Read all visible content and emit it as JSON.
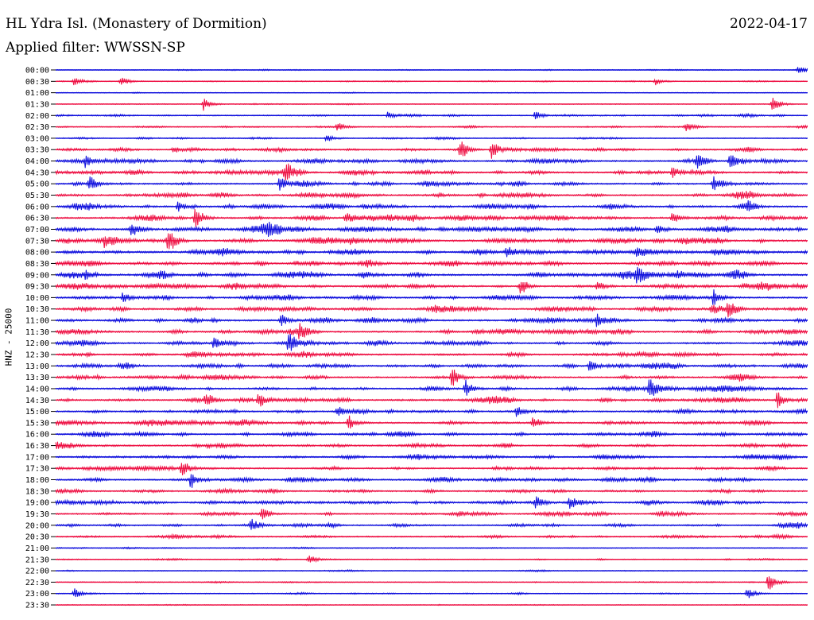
{
  "header": {
    "station": "HL Ydra Isl. (Monastery of Dormition)",
    "date": "2022-04-17",
    "filter": "Applied filter: WWSSN-SP"
  },
  "chart_data": {
    "type": "line",
    "title": "HL Ydra Isl. (Monastery of Dormition)",
    "subtitle": "Applied filter: WWSSN-SP",
    "ylabel": "HNZ - 25000",
    "series_colors": [
      "#1010dd",
      "#ee1144"
    ],
    "rows": [
      "00:00",
      "00:30",
      "01:00",
      "01:30",
      "02:00",
      "02:30",
      "03:00",
      "03:30",
      "04:00",
      "04:30",
      "05:00",
      "05:30",
      "06:00",
      "06:30",
      "07:00",
      "07:30",
      "08:00",
      "08:30",
      "09:00",
      "09:30",
      "10:00",
      "10:30",
      "11:00",
      "11:30",
      "12:00",
      "12:30",
      "13:00",
      "13:30",
      "14:00",
      "14:30",
      "15:00",
      "15:30",
      "16:00",
      "16:30",
      "17:00",
      "17:30",
      "18:00",
      "18:30",
      "19:00",
      "19:30",
      "20:00",
      "20:30",
      "21:00",
      "21:30",
      "22:00",
      "22:30",
      "23:00",
      "23:30"
    ],
    "activity": [
      0.15,
      0.15,
      0.1,
      0.12,
      0.3,
      0.25,
      0.25,
      0.45,
      0.55,
      0.55,
      0.55,
      0.6,
      0.65,
      0.7,
      0.75,
      0.75,
      0.75,
      0.7,
      0.75,
      0.7,
      0.6,
      0.65,
      0.65,
      0.65,
      0.6,
      0.6,
      0.6,
      0.55,
      0.6,
      0.6,
      0.55,
      0.6,
      0.6,
      0.55,
      0.55,
      0.55,
      0.55,
      0.5,
      0.55,
      0.5,
      0.45,
      0.4,
      0.2,
      0.2,
      0.15,
      0.15,
      0.2,
      0.1
    ],
    "events": [
      {
        "row": 0,
        "t": 0.988,
        "amp": 0.8
      },
      {
        "row": 1,
        "t": 0.025,
        "amp": 0.8
      },
      {
        "row": 1,
        "t": 0.087,
        "amp": 0.9
      },
      {
        "row": 1,
        "t": 0.798,
        "amp": 0.6
      },
      {
        "row": 3,
        "t": 0.197,
        "amp": 1.2
      },
      {
        "row": 3,
        "t": 0.953,
        "amp": 1.6
      },
      {
        "row": 4,
        "t": 0.442,
        "amp": 0.7
      },
      {
        "row": 4,
        "t": 0.638,
        "amp": 0.8
      },
      {
        "row": 5,
        "t": 0.375,
        "amp": 0.8
      },
      {
        "row": 5,
        "t": 0.838,
        "amp": 0.7
      },
      {
        "row": 6,
        "t": 0.36,
        "amp": 0.7
      },
      {
        "row": 7,
        "t": 0.538,
        "amp": 2.3
      },
      {
        "row": 7,
        "t": 0.58,
        "amp": 1.8
      },
      {
        "row": 7,
        "t": 0.157,
        "amp": 0.7
      },
      {
        "row": 8,
        "t": 0.04,
        "amp": 1.4
      },
      {
        "row": 8,
        "t": 0.897,
        "amp": 1.6
      },
      {
        "row": 8,
        "t": 0.853,
        "amp": 1.8
      },
      {
        "row": 9,
        "t": 0.305,
        "amp": 2.8
      },
      {
        "row": 9,
        "t": 0.82,
        "amp": 0.9
      },
      {
        "row": 10,
        "t": 0.045,
        "amp": 1.6
      },
      {
        "row": 10,
        "t": 0.298,
        "amp": 1.3
      },
      {
        "row": 10,
        "t": 0.875,
        "amp": 1.5
      },
      {
        "row": 12,
        "t": 0.163,
        "amp": 0.9
      },
      {
        "row": 12,
        "t": 0.92,
        "amp": 0.9
      },
      {
        "row": 13,
        "t": 0.186,
        "amp": 2.3
      },
      {
        "row": 13,
        "t": 0.386,
        "amp": 1.4
      },
      {
        "row": 13,
        "t": 0.82,
        "amp": 1.0
      },
      {
        "row": 14,
        "t": 0.1,
        "amp": 1.4
      },
      {
        "row": 14,
        "t": 0.8,
        "amp": 1.0
      },
      {
        "row": 15,
        "t": 0.15,
        "amp": 2.5
      },
      {
        "row": 15,
        "t": 0.065,
        "amp": 1.0
      },
      {
        "row": 16,
        "t": 0.6,
        "amp": 1.2
      },
      {
        "row": 16,
        "t": 0.772,
        "amp": 1.0
      },
      {
        "row": 18,
        "t": 0.04,
        "amp": 1.0
      },
      {
        "row": 18,
        "t": 0.772,
        "amp": 1.6
      },
      {
        "row": 19,
        "t": 0.618,
        "amp": 1.6
      },
      {
        "row": 19,
        "t": 0.72,
        "amp": 0.9
      },
      {
        "row": 20,
        "t": 0.09,
        "amp": 1.1
      },
      {
        "row": 20,
        "t": 0.875,
        "amp": 1.5
      },
      {
        "row": 21,
        "t": 0.873,
        "amp": 1.2
      },
      {
        "row": 21,
        "t": 0.895,
        "amp": 2.2
      },
      {
        "row": 22,
        "t": 0.3,
        "amp": 1.2
      },
      {
        "row": 22,
        "t": 0.72,
        "amp": 1.1
      },
      {
        "row": 23,
        "t": 0.325,
        "amp": 1.4
      },
      {
        "row": 24,
        "t": 0.31,
        "amp": 1.8
      },
      {
        "row": 24,
        "t": 0.21,
        "amp": 1.0
      },
      {
        "row": 26,
        "t": 0.71,
        "amp": 1.2
      },
      {
        "row": 27,
        "t": 0.527,
        "amp": 2.0
      },
      {
        "row": 28,
        "t": 0.545,
        "amp": 1.6
      },
      {
        "row": 28,
        "t": 0.79,
        "amp": 1.8
      },
      {
        "row": 29,
        "t": 0.2,
        "amp": 1.6
      },
      {
        "row": 29,
        "t": 0.27,
        "amp": 1.5
      },
      {
        "row": 29,
        "t": 0.96,
        "amp": 1.6
      },
      {
        "row": 30,
        "t": 0.375,
        "amp": 1.0
      },
      {
        "row": 30,
        "t": 0.613,
        "amp": 1.0
      },
      {
        "row": 31,
        "t": 0.39,
        "amp": 1.4
      },
      {
        "row": 31,
        "t": 0.635,
        "amp": 1.3
      },
      {
        "row": 35,
        "t": 0.168,
        "amp": 1.8
      },
      {
        "row": 36,
        "t": 0.18,
        "amp": 1.6
      },
      {
        "row": 38,
        "t": 0.638,
        "amp": 1.2
      },
      {
        "row": 38,
        "t": 0.684,
        "amp": 1.1
      },
      {
        "row": 39,
        "t": 0.275,
        "amp": 1.2
      },
      {
        "row": 40,
        "t": 0.26,
        "amp": 1.0
      },
      {
        "row": 43,
        "t": 0.337,
        "amp": 1.0
      },
      {
        "row": 45,
        "t": 0.948,
        "amp": 1.6
      },
      {
        "row": 46,
        "t": 0.025,
        "amp": 1.0
      },
      {
        "row": 46,
        "t": 0.92,
        "amp": 1.1
      }
    ]
  }
}
